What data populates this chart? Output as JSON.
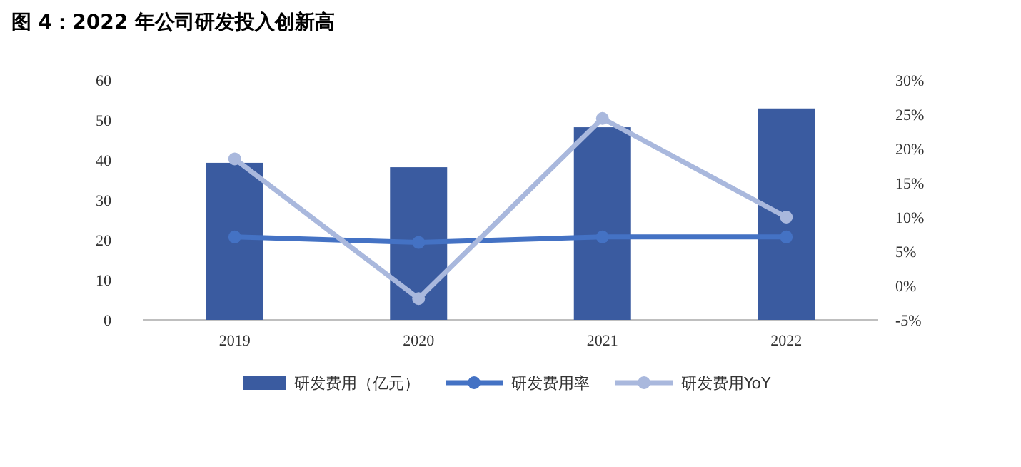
{
  "chart_data": {
    "type": "bar",
    "title": "图 4：2022 年公司研发投入创新高",
    "categories": [
      "2019",
      "2020",
      "2021",
      "2022"
    ],
    "series": [
      {
        "name": "研发费用（亿元）",
        "color": "#3a5ba0",
        "values": [
          39.3,
          38.2,
          48.2,
          52.9
        ]
      },
      {
        "name": "研发费用率",
        "type": "line",
        "axis": "y2",
        "color": "#4472c4",
        "values": [
          7.1,
          6.3,
          7.1,
          7.1
        ]
      },
      {
        "name": "研发费用YoY",
        "type": "line",
        "axis": "y2",
        "color": "#a9b8dd",
        "values": [
          18.5,
          -1.9,
          24.4,
          10.0
        ]
      }
    ],
    "ylim": [
      0,
      60
    ],
    "yticks": [
      0,
      10,
      20,
      30,
      40,
      50,
      60
    ],
    "y2lim": [
      -5,
      30
    ],
    "y2ticks": [
      {
        "value": -5,
        "label": "-5%"
      },
      {
        "value": 0,
        "label": "0%"
      },
      {
        "value": 5,
        "label": "5%"
      },
      {
        "value": 10,
        "label": "10%"
      },
      {
        "value": 15,
        "label": "15%"
      },
      {
        "value": 20,
        "label": "20%"
      },
      {
        "value": 25,
        "label": "25%"
      },
      {
        "value": 30,
        "label": "30%"
      }
    ],
    "marker": "circle",
    "legend": "bottom",
    "grid": false
  }
}
